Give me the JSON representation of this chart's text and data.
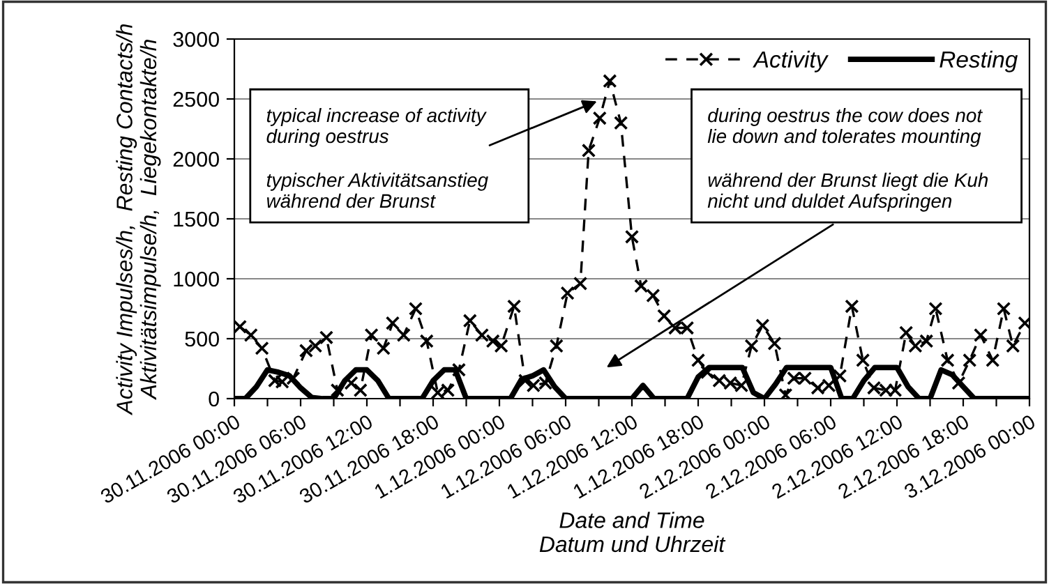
{
  "chart_data": {
    "type": "line",
    "xlabel": "Date and Time\nDatum und Uhrzeit",
    "ylabel": "Activity Impulses/h,  Resting Contacts/h\nAktivitätsimpulse/h,  Liegekontakte/h",
    "xlim": [
      "2006-11-30T00:00",
      "2006-12-03T00:00"
    ],
    "ylim": [
      0,
      3000
    ],
    "yticks": [
      0,
      500,
      1000,
      1500,
      2000,
      2500,
      3000
    ],
    "xticks": [
      {
        "value": "2006-11-30T00:00",
        "label": "30.11.2006 00:00"
      },
      {
        "value": "2006-11-30T03:00",
        "label": null
      },
      {
        "value": "2006-11-30T06:00",
        "label": "30.11.2006 06:00"
      },
      {
        "value": "2006-11-30T09:00",
        "label": null
      },
      {
        "value": "2006-11-30T12:00",
        "label": "30.11.2006 12:00"
      },
      {
        "value": "2006-11-30T15:00",
        "label": null
      },
      {
        "value": "2006-11-30T18:00",
        "label": "30.11.2006 18:00"
      },
      {
        "value": "2006-11-30T21:00",
        "label": null
      },
      {
        "value": "2006-12-01T00:00",
        "label": "1.12.2006 00:00"
      },
      {
        "value": "2006-12-01T03:00",
        "label": null
      },
      {
        "value": "2006-12-01T06:00",
        "label": "1.12.2006 06:00"
      },
      {
        "value": "2006-12-01T09:00",
        "label": null
      },
      {
        "value": "2006-12-01T12:00",
        "label": "1.12.2006 12:00"
      },
      {
        "value": "2006-12-01T15:00",
        "label": null
      },
      {
        "value": "2006-12-01T18:00",
        "label": "1.12.2006 18:00"
      },
      {
        "value": "2006-12-01T21:00",
        "label": null
      },
      {
        "value": "2006-12-02T00:00",
        "label": "2.12.2006 00:00"
      },
      {
        "value": "2006-12-02T03:00",
        "label": null
      },
      {
        "value": "2006-12-02T06:00",
        "label": "2.12.2006 06:00"
      },
      {
        "value": "2006-12-02T09:00",
        "label": null
      },
      {
        "value": "2006-12-02T12:00",
        "label": "2.12.2006 12:00"
      },
      {
        "value": "2006-12-02T15:00",
        "label": null
      },
      {
        "value": "2006-12-02T18:00",
        "label": "2.12.2006 18:00"
      },
      {
        "value": "2006-12-02T21:00",
        "label": null
      },
      {
        "value": "2006-12-03T00:00",
        "label": "3.12.2006 00:00"
      }
    ],
    "grid": "y",
    "legend": "top right",
    "series": [
      {
        "name": "Activity",
        "color": "#000000",
        "marker": "cross",
        "line_style": "dashed",
        "x": [
          "2006-11-30T00:30",
          "2006-11-30T01:30",
          "2006-11-30T02:30",
          "2006-11-30T03:40",
          "2006-11-30T04:20",
          "2006-11-30T05:20",
          "2006-11-30T06:30",
          "2006-11-30T07:20",
          "2006-11-30T08:20",
          "2006-11-30T09:20",
          "2006-11-30T10:35",
          "2006-11-30T11:25",
          "2006-11-30T12:25",
          "2006-11-30T13:30",
          "2006-11-30T14:20",
          "2006-11-30T15:20",
          "2006-11-30T16:25",
          "2006-11-30T17:25",
          "2006-11-30T18:25",
          "2006-11-30T19:20",
          "2006-11-30T20:20",
          "2006-11-30T21:20",
          "2006-11-30T22:25",
          "2006-11-30T23:25",
          "2006-12-01T00:10",
          "2006-12-01T01:20",
          "2006-12-01T02:20",
          "2006-12-01T03:05",
          "2006-12-01T04:10",
          "2006-12-01T05:10",
          "2006-12-01T06:10",
          "2006-12-01T07:20",
          "2006-12-01T08:05",
          "2006-12-01T09:05",
          "2006-12-01T10:00",
          "2006-12-01T11:00",
          "2006-12-01T12:00",
          "2006-12-01T12:50",
          "2006-12-01T13:55",
          "2006-12-01T14:55",
          "2006-12-01T15:55",
          "2006-12-01T17:00",
          "2006-12-01T18:00",
          "2006-12-01T18:50",
          "2006-12-01T19:55",
          "2006-12-01T20:55",
          "2006-12-01T21:55",
          "2006-12-01T22:50",
          "2006-12-01T23:50",
          "2006-12-02T00:55",
          "2006-12-02T01:55",
          "2006-12-02T02:40",
          "2006-12-02T03:40",
          "2006-12-02T04:50",
          "2006-12-02T05:50",
          "2006-12-02T06:50",
          "2006-12-02T07:55",
          "2006-12-02T08:55",
          "2006-12-02T09:55",
          "2006-12-02T11:00",
          "2006-12-02T11:50",
          "2006-12-02T12:50",
          "2006-12-02T13:40",
          "2006-12-02T14:40",
          "2006-12-02T15:30",
          "2006-12-02T16:35",
          "2006-12-02T17:35",
          "2006-12-02T18:35",
          "2006-12-02T19:35",
          "2006-12-02T20:40",
          "2006-12-02T21:40",
          "2006-12-02T22:30",
          "2006-12-02T23:35"
        ],
        "values": [
          600,
          530,
          420,
          150,
          140,
          170,
          400,
          440,
          510,
          70,
          130,
          70,
          530,
          420,
          630,
          530,
          750,
          480,
          50,
          70,
          240,
          650,
          530,
          480,
          440,
          770,
          150,
          110,
          130,
          440,
          880,
          960,
          2070,
          2340,
          2650,
          2300,
          1350,
          940,
          860,
          690,
          590,
          590,
          320,
          220,
          150,
          130,
          110,
          440,
          610,
          460,
          30,
          170,
          170,
          90,
          110,
          190,
          770,
          320,
          90,
          70,
          70,
          550,
          440,
          480,
          750,
          320,
          130,
          320,
          530,
          320,
          750,
          440,
          630
        ]
      },
      {
        "name": "Resting",
        "color": "#000000",
        "marker": "none",
        "line_style": "solid",
        "x": [
          "2006-11-30T00:00",
          "2006-11-30T01:00",
          "2006-11-30T02:00",
          "2006-11-30T03:00",
          "2006-11-30T04:00",
          "2006-11-30T05:00",
          "2006-11-30T06:00",
          "2006-11-30T07:00",
          "2006-11-30T08:00",
          "2006-11-30T09:00",
          "2006-11-30T10:00",
          "2006-11-30T11:00",
          "2006-11-30T12:00",
          "2006-11-30T13:00",
          "2006-11-30T14:00",
          "2006-11-30T16:00",
          "2006-11-30T17:00",
          "2006-11-30T18:00",
          "2006-11-30T19:00",
          "2006-11-30T20:00",
          "2006-11-30T21:00",
          "2006-12-01T00:00",
          "2006-12-01T01:00",
          "2006-12-01T02:00",
          "2006-12-01T03:00",
          "2006-12-01T04:00",
          "2006-12-01T05:00",
          "2006-12-01T06:00",
          "2006-12-01T12:00",
          "2006-12-01T13:00",
          "2006-12-01T14:00",
          "2006-12-01T17:00",
          "2006-12-01T18:00",
          "2006-12-01T19:00",
          "2006-12-01T22:00",
          "2006-12-01T23:00",
          "2006-12-02T00:00",
          "2006-12-02T01:00",
          "2006-12-02T02:00",
          "2006-12-02T06:00",
          "2006-12-02T07:00",
          "2006-12-02T08:00",
          "2006-12-02T09:00",
          "2006-12-02T10:00",
          "2006-12-02T12:00",
          "2006-12-02T13:00",
          "2006-12-02T14:00",
          "2006-12-02T15:00",
          "2006-12-02T16:00",
          "2006-12-02T17:00",
          "2006-12-02T18:00",
          "2006-12-02T19:00",
          "2006-12-02T20:00",
          "2006-12-03T00:00"
        ],
        "values": [
          0,
          0,
          100,
          240,
          220,
          190,
          90,
          10,
          0,
          0,
          150,
          240,
          240,
          150,
          0,
          0,
          0,
          150,
          240,
          240,
          0,
          0,
          0,
          160,
          190,
          240,
          100,
          0,
          0,
          110,
          0,
          0,
          180,
          260,
          260,
          50,
          0,
          120,
          260,
          260,
          0,
          0,
          150,
          260,
          260,
          100,
          0,
          0,
          240,
          200,
          100,
          0,
          0,
          0
        ]
      }
    ],
    "annotations": [
      {
        "text": "typical increase of activity\nduring oestrus",
        "x": "2006-12-01T08:50",
        "y": 2480
      },
      "typischer Aktivitätsanstieg\nwährend der Brunst",
      "during oestrus the cow does not\nlie down and tolerates mounting",
      "während der Brunst liegt die Kuh\nnicht und duldet Aufspringen"
    ]
  }
}
